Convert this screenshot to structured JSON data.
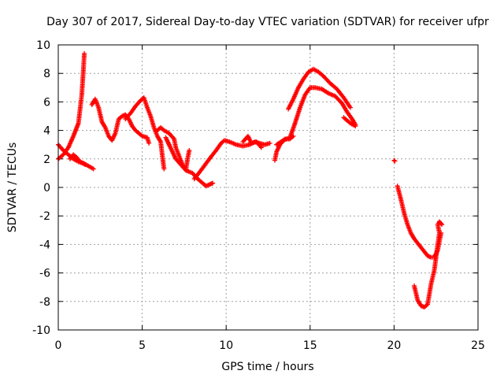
{
  "chart_data": {
    "type": "scatter",
    "title": "Day 307 of 2017, Sidereal Day-to-day VTEC variation (SDTVAR) for receiver ufpr",
    "xlabel": "GPS time / hours",
    "ylabel": "SDTVAR / TECUs",
    "xlim": [
      0,
      25
    ],
    "ylim": [
      -10,
      10
    ],
    "xticks": [
      0,
      5,
      10,
      15,
      20,
      25
    ],
    "yticks": [
      -10,
      -8,
      -6,
      -4,
      -2,
      0,
      2,
      4,
      6,
      8,
      10
    ],
    "grid": true,
    "marker": "+",
    "color": "#ff0000",
    "series": [
      {
        "segments": [
          [
            [
              0.0,
              3.0
            ],
            [
              0.3,
              2.6
            ],
            [
              0.6,
              2.3
            ],
            [
              0.9,
              2.0
            ],
            [
              1.2,
              1.8
            ],
            [
              1.5,
              1.7
            ],
            [
              1.8,
              1.5
            ],
            [
              2.1,
              1.3
            ]
          ],
          [
            [
              0.0,
              2.0
            ],
            [
              0.3,
              2.3
            ],
            [
              0.6,
              2.8
            ],
            [
              0.9,
              3.6
            ],
            [
              1.2,
              4.5
            ],
            [
              1.4,
              6.5
            ],
            [
              1.5,
              8.3
            ],
            [
              1.55,
              9.4
            ]
          ],
          [
            [
              0.7,
              2.0
            ],
            [
              0.9,
              2.3
            ],
            [
              1.1,
              2.1
            ],
            [
              1.3,
              1.8
            ],
            [
              1.6,
              1.6
            ]
          ],
          [
            [
              2.0,
              5.8
            ],
            [
              2.2,
              6.2
            ],
            [
              2.4,
              5.6
            ],
            [
              2.6,
              4.6
            ],
            [
              2.8,
              4.2
            ],
            [
              3.0,
              3.6
            ],
            [
              3.2,
              3.3
            ],
            [
              3.4,
              3.8
            ],
            [
              3.6,
              4.8
            ],
            [
              3.8,
              5.0
            ],
            [
              4.0,
              5.1
            ],
            [
              4.2,
              4.8
            ],
            [
              4.4,
              4.3
            ],
            [
              4.6,
              4.0
            ],
            [
              4.8,
              3.8
            ],
            [
              5.0,
              3.6
            ],
            [
              5.3,
              3.5
            ],
            [
              5.4,
              3.1
            ]
          ],
          [
            [
              4.0,
              4.8
            ],
            [
              4.3,
              5.2
            ],
            [
              4.6,
              5.7
            ],
            [
              4.9,
              6.1
            ],
            [
              5.1,
              6.3
            ],
            [
              5.3,
              5.6
            ],
            [
              5.5,
              5.0
            ],
            [
              5.7,
              4.2
            ],
            [
              5.9,
              3.6
            ],
            [
              6.1,
              3.2
            ],
            [
              6.2,
              2.2
            ],
            [
              6.3,
              1.3
            ]
          ],
          [
            [
              5.8,
              3.9
            ],
            [
              6.1,
              4.2
            ],
            [
              6.3,
              4.0
            ],
            [
              6.6,
              3.8
            ],
            [
              6.9,
              3.4
            ],
            [
              7.0,
              2.8
            ],
            [
              7.2,
              2.2
            ],
            [
              7.4,
              1.6
            ],
            [
              7.6,
              1.2
            ],
            [
              7.7,
              2.0
            ],
            [
              7.8,
              2.6
            ]
          ],
          [
            [
              6.4,
              3.5
            ],
            [
              6.6,
              3.0
            ],
            [
              6.8,
              2.5
            ],
            [
              7.0,
              2.0
            ],
            [
              7.3,
              1.6
            ],
            [
              7.6,
              1.2
            ],
            [
              8.0,
              1.0
            ],
            [
              8.3,
              0.6
            ],
            [
              8.6,
              0.3
            ],
            [
              8.8,
              0.1
            ],
            [
              9.0,
              0.2
            ],
            [
              9.2,
              0.3
            ]
          ],
          [
            [
              8.1,
              0.6
            ],
            [
              8.5,
              1.2
            ],
            [
              9.0,
              2.0
            ],
            [
              9.4,
              2.6
            ],
            [
              9.7,
              3.1
            ],
            [
              9.9,
              3.3
            ],
            [
              10.2,
              3.2
            ],
            [
              10.6,
              3.0
            ],
            [
              11.0,
              2.9
            ],
            [
              11.4,
              3.0
            ],
            [
              11.7,
              3.2
            ],
            [
              12.0,
              3.1
            ],
            [
              12.3,
              3.0
            ],
            [
              12.6,
              3.1
            ]
          ],
          [
            [
              11.0,
              3.2
            ],
            [
              11.3,
              3.6
            ],
            [
              11.5,
              3.1
            ],
            [
              11.8,
              3.2
            ],
            [
              12.1,
              2.8
            ]
          ],
          [
            [
              12.9,
              1.9
            ],
            [
              13.0,
              2.5
            ],
            [
              13.2,
              3.0
            ],
            [
              13.5,
              3.4
            ],
            [
              13.8,
              3.4
            ],
            [
              14.0,
              3.6
            ]
          ],
          [
            [
              13.0,
              3.0
            ],
            [
              13.4,
              3.3
            ],
            [
              13.8,
              3.5
            ],
            [
              14.1,
              4.5
            ],
            [
              14.4,
              5.6
            ],
            [
              14.7,
              6.5
            ],
            [
              15.0,
              7.0
            ],
            [
              15.3,
              7.0
            ],
            [
              15.7,
              6.9
            ],
            [
              16.1,
              6.6
            ],
            [
              16.5,
              6.4
            ],
            [
              16.9,
              5.9
            ],
            [
              17.2,
              5.3
            ],
            [
              17.5,
              4.8
            ],
            [
              17.7,
              4.4
            ]
          ],
          [
            [
              13.7,
              5.5
            ],
            [
              14.0,
              6.2
            ],
            [
              14.3,
              7.0
            ],
            [
              14.6,
              7.6
            ],
            [
              14.9,
              8.1
            ],
            [
              15.2,
              8.3
            ],
            [
              15.5,
              8.1
            ],
            [
              15.8,
              7.8
            ],
            [
              16.2,
              7.3
            ],
            [
              16.6,
              6.9
            ],
            [
              17.0,
              6.3
            ],
            [
              17.4,
              5.6
            ]
          ],
          [
            [
              17.0,
              4.9
            ],
            [
              17.4,
              4.5
            ],
            [
              17.7,
              4.3
            ]
          ],
          [
            [
              20.0,
              1.9
            ],
            [
              20.05,
              1.85
            ]
          ],
          [
            [
              20.2,
              0.1
            ],
            [
              20.4,
              -0.8
            ],
            [
              20.6,
              -1.8
            ],
            [
              20.8,
              -2.6
            ],
            [
              21.0,
              -3.2
            ],
            [
              21.2,
              -3.6
            ],
            [
              21.4,
              -3.9
            ],
            [
              21.6,
              -4.2
            ],
            [
              21.8,
              -4.5
            ],
            [
              22.0,
              -4.8
            ],
            [
              22.2,
              -4.9
            ],
            [
              22.4,
              -4.9
            ],
            [
              22.6,
              -4.4
            ],
            [
              22.8,
              -3.2
            ]
          ],
          [
            [
              21.2,
              -6.9
            ],
            [
              21.3,
              -7.4
            ],
            [
              21.4,
              -7.9
            ],
            [
              21.6,
              -8.3
            ],
            [
              21.8,
              -8.4
            ],
            [
              22.0,
              -8.2
            ],
            [
              22.1,
              -7.5
            ],
            [
              22.2,
              -6.8
            ],
            [
              22.4,
              -5.8
            ],
            [
              22.5,
              -4.9
            ],
            [
              22.6,
              -4.0
            ],
            [
              22.7,
              -3.2
            ],
            [
              22.6,
              -2.6
            ],
            [
              22.7,
              -2.4
            ],
            [
              22.85,
              -2.6
            ]
          ]
        ]
      }
    ]
  }
}
